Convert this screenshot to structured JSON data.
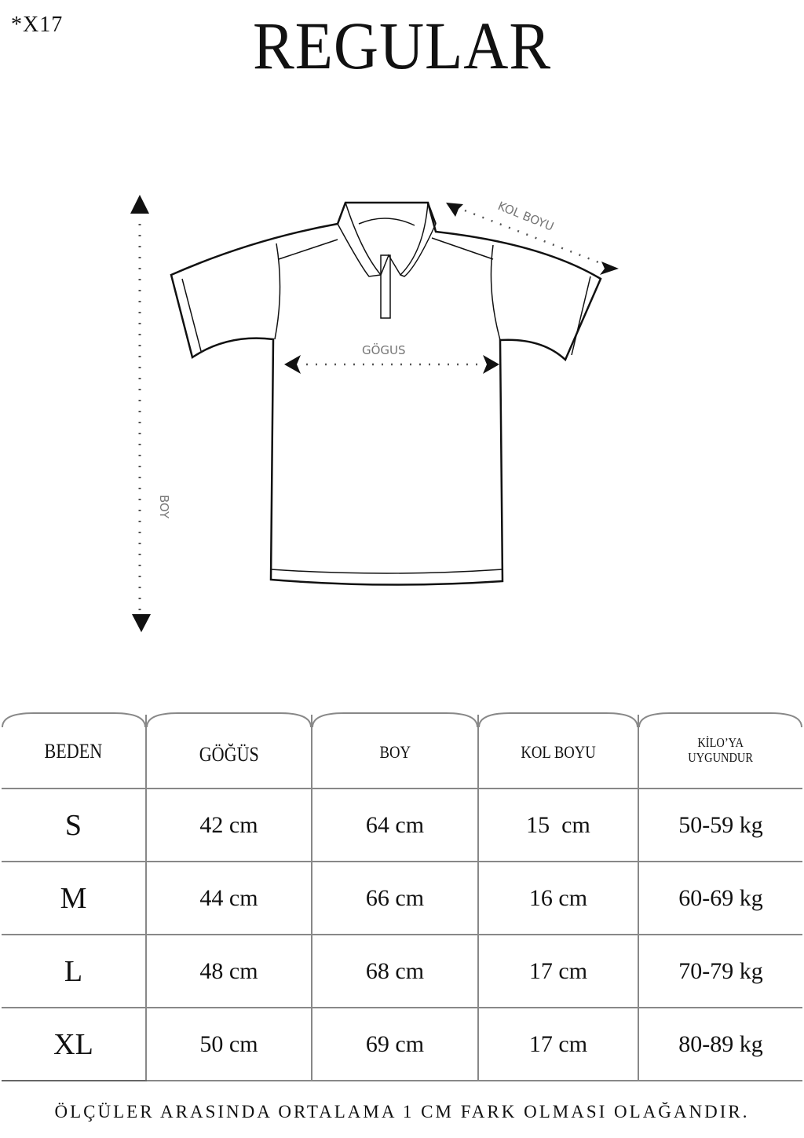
{
  "code": "*X17",
  "title": "REGULAR",
  "diagram": {
    "labels": {
      "chest": "GÖGUS",
      "sleeve": "KOL BOYU",
      "length": "BOY"
    }
  },
  "table": {
    "headers": [
      "BEDEN",
      "GÖĞÜS",
      "BOY",
      "KOL BOYU",
      "KİLO’YA",
      "UYGUNDUR"
    ],
    "rows": [
      {
        "size": "S",
        "chest": "42 cm",
        "length": "64 cm",
        "sleeve": "15  cm",
        "weight": "50-59 kg"
      },
      {
        "size": "M",
        "chest": "44 cm",
        "length": "66 cm",
        "sleeve": "16 cm",
        "weight": "60-69 kg"
      },
      {
        "size": "L",
        "chest": "48 cm",
        "length": "68 cm",
        "sleeve": "17 cm",
        "weight": "70-79 kg"
      },
      {
        "size": "XL",
        "chest": "50 cm",
        "length": "69 cm",
        "sleeve": "17 cm",
        "weight": "80-89 kg"
      }
    ]
  },
  "footer": "ÖLÇÜLER ARASINDA ORTALAMA 1 CM FARK OLMASI OLAĞANDIR."
}
